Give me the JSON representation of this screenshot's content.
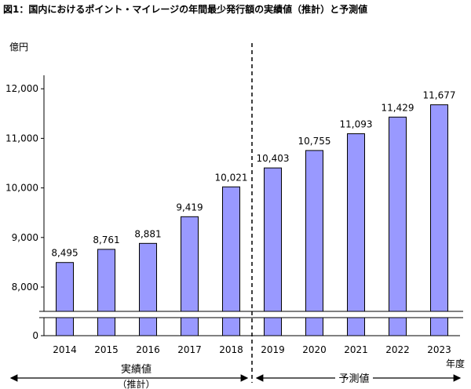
{
  "chart_data": {
    "type": "bar",
    "title": "図1：国内におけるポイント・マイレージの年間最少発行額の実績値（推計）と予測値",
    "ylabel": "億円",
    "xlabel": "年度",
    "categories": [
      "2014",
      "2015",
      "2016",
      "2017",
      "2018",
      "2019",
      "2020",
      "2021",
      "2022",
      "2023"
    ],
    "values": [
      8495,
      8761,
      8881,
      9419,
      10021,
      10403,
      10755,
      11093,
      11429,
      11677
    ],
    "value_labels": [
      "8,495",
      "8,761",
      "8,881",
      "9,419",
      "10,021",
      "10,403",
      "10,755",
      "11,093",
      "11,429",
      "11,677"
    ],
    "yticks": [
      0,
      8000,
      9000,
      10000,
      11000,
      12000
    ],
    "ytick_labels": [
      "0",
      "8,000",
      "9,000",
      "10,000",
      "11,000",
      "12,000"
    ],
    "ylim": [
      7600,
      12400
    ],
    "axis_break": true,
    "grid": false,
    "bar_color": "#9999ff",
    "periods": [
      {
        "label": "実績値",
        "sublabel": "（推計）",
        "from": "2014",
        "to": "2018"
      },
      {
        "label": "予測値",
        "sublabel": "",
        "from": "2019",
        "to": "2023"
      }
    ]
  }
}
